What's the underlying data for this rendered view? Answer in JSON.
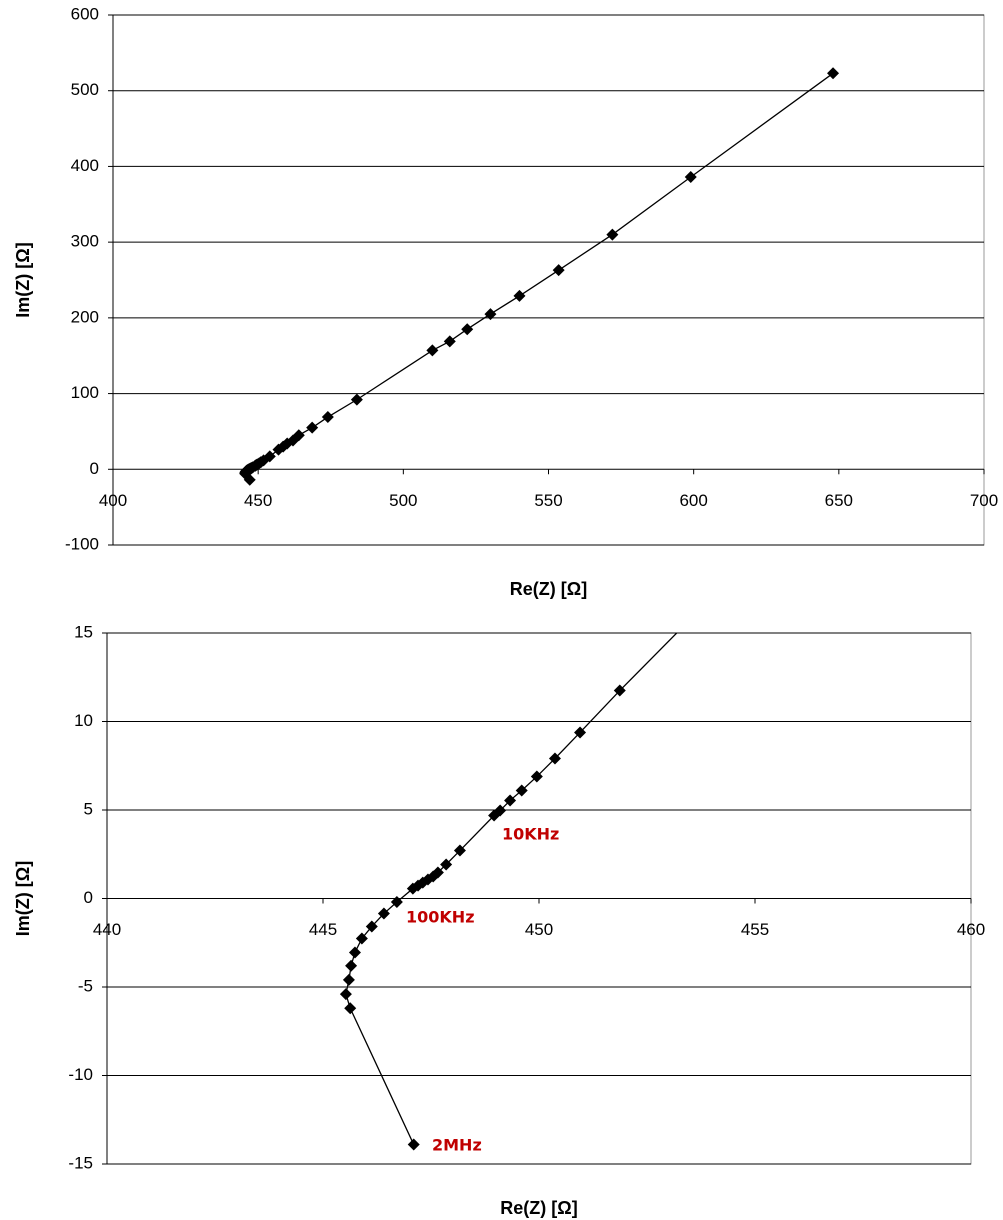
{
  "chart_data": [
    {
      "type": "line",
      "x_label": "Re(Z) [Ω]",
      "y_label": "Im(Z) [Ω]",
      "x": [
        447.1,
        445.63,
        445.53,
        445.6,
        445.65,
        445.74,
        445.9,
        446.13,
        446.41,
        446.71,
        447.08,
        447.2,
        447.31,
        447.43,
        447.55,
        447.66,
        447.85,
        448.17,
        448.96,
        449.1,
        449.33,
        449.6,
        449.95,
        450.37,
        450.95,
        451.87,
        454,
        457,
        458.6,
        460,
        462,
        464,
        468.6,
        474,
        484,
        510,
        516,
        522,
        530,
        540,
        553.5,
        572,
        599,
        648
      ],
      "series": [
        {
          "name": "Im(Z)",
          "color": "#000000",
          "values": [
            -13.9,
            -6.2,
            -5.4,
            -4.6,
            -3.8,
            -3.05,
            -2.26,
            -1.58,
            -0.85,
            -0.2,
            0.56,
            0.73,
            0.9,
            1.07,
            1.24,
            1.47,
            1.92,
            2.71,
            4.69,
            4.97,
            5.54,
            6.1,
            6.89,
            7.91,
            9.38,
            11.75,
            17,
            26,
            30,
            34,
            38,
            45,
            55,
            69,
            92,
            157,
            169,
            185,
            205,
            229,
            263,
            310,
            386,
            523
          ]
        }
      ],
      "xlim": [
        400,
        700
      ],
      "xticks": [
        400,
        450,
        500,
        550,
        600,
        650,
        700
      ],
      "ylim": [
        -100,
        600
      ],
      "yticks": [
        -100,
        0,
        100,
        200,
        300,
        400,
        500,
        600
      ],
      "grid": true
    },
    {
      "type": "line",
      "x_label": "Re(Z) [Ω]",
      "y_label": "Im(Z) [Ω]",
      "x": [
        447.1,
        445.63,
        445.53,
        445.6,
        445.65,
        445.74,
        445.9,
        446.13,
        446.41,
        446.71,
        447.08,
        447.2,
        447.31,
        447.43,
        447.55,
        447.66,
        447.85,
        448.17,
        448.96,
        449.1,
        449.33,
        449.6,
        449.95,
        450.37,
        450.95,
        451.87,
        454
      ],
      "series": [
        {
          "name": "Im(Z)",
          "color": "#000000",
          "values": [
            -13.9,
            -6.2,
            -5.4,
            -4.6,
            -3.8,
            -3.05,
            -2.26,
            -1.58,
            -0.85,
            -0.2,
            0.56,
            0.73,
            0.9,
            1.07,
            1.24,
            1.47,
            1.92,
            2.71,
            4.69,
            4.97,
            5.54,
            6.1,
            6.89,
            7.91,
            9.38,
            11.75,
            17
          ]
        }
      ],
      "xlim": [
        440,
        460
      ],
      "xticks": [
        440,
        445,
        450,
        455,
        460
      ],
      "ylim": [
        -15,
        15
      ],
      "yticks": [
        -15,
        -10,
        -5,
        0,
        5,
        10,
        15
      ],
      "grid": true,
      "annotations": [
        "10KHz",
        "100KHz",
        "2MHz"
      ]
    }
  ]
}
